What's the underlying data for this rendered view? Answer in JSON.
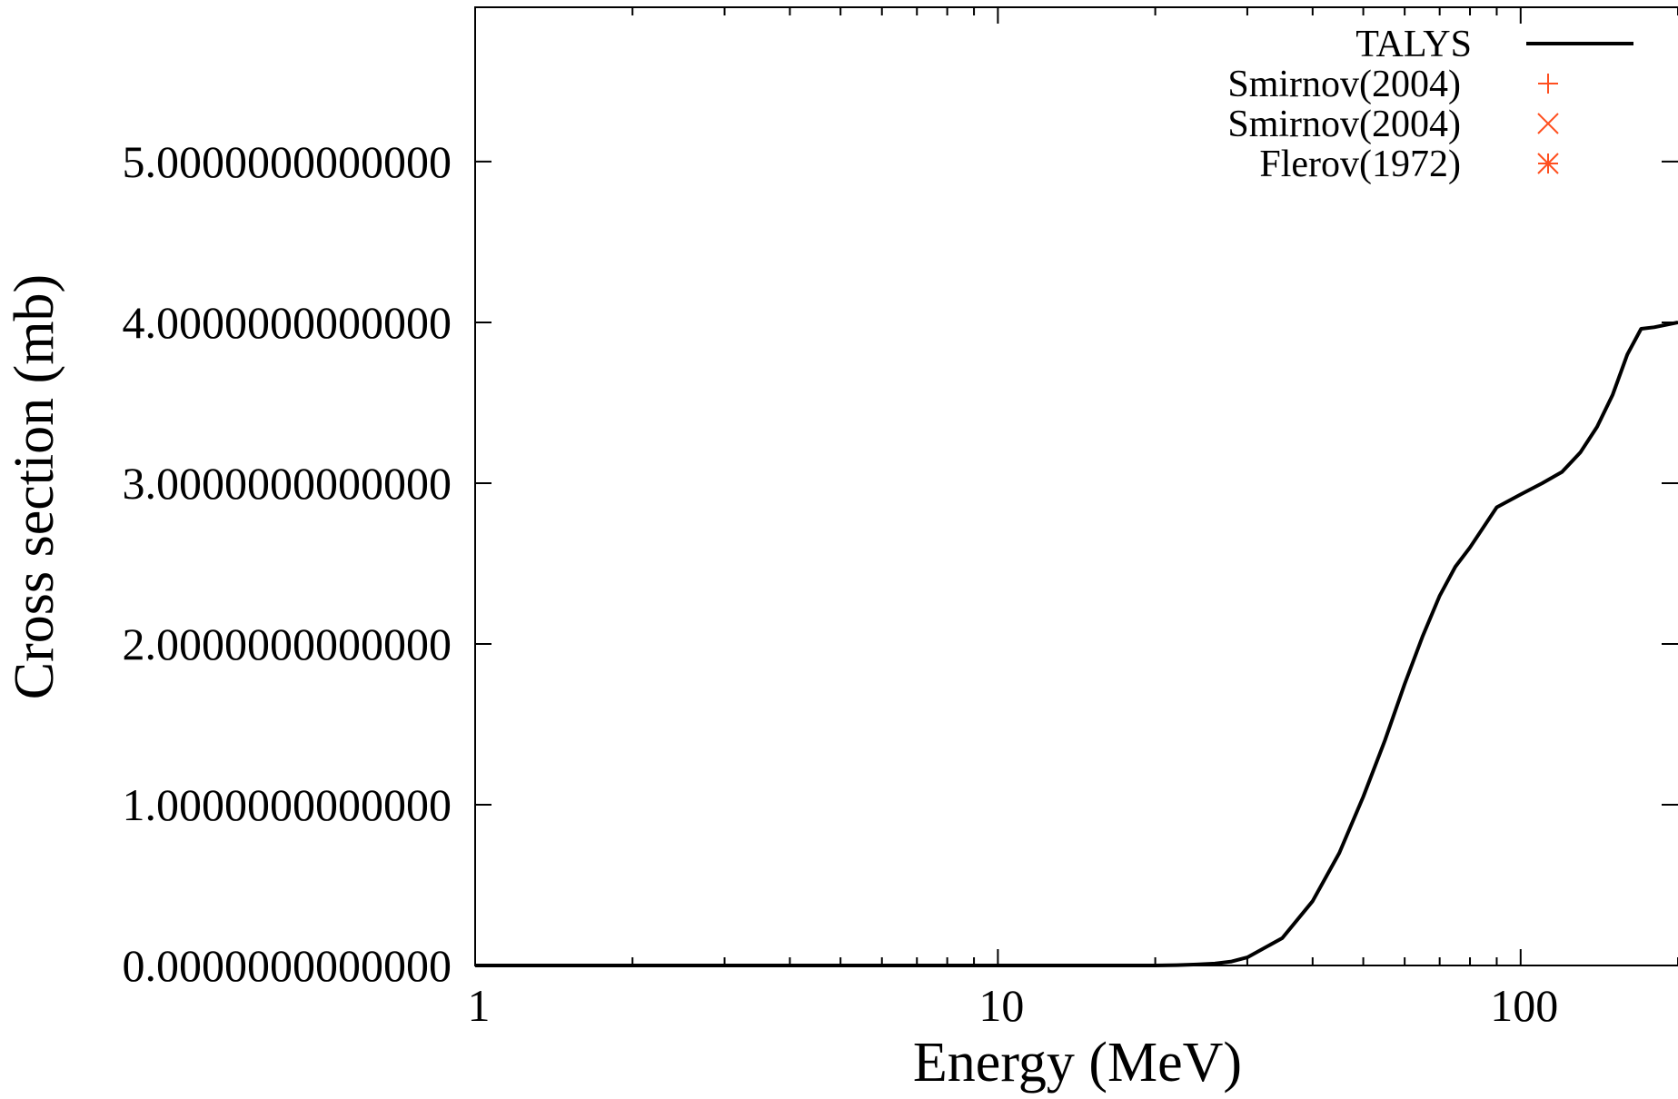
{
  "chart_data": {
    "type": "line",
    "xlabel": "Energy (MeV)",
    "ylabel": "Cross section (mb)",
    "x_scale": "log",
    "xlim": [
      1,
      200
    ],
    "ylim": [
      0,
      5.96
    ],
    "x_ticks": [
      {
        "value": 1,
        "label": "1"
      },
      {
        "value": 10,
        "label": "10"
      },
      {
        "value": 100,
        "label": "100"
      }
    ],
    "y_ticks": [
      {
        "value": 0,
        "label": "0.0000000000000"
      },
      {
        "value": 1,
        "label": "1.0000000000000"
      },
      {
        "value": 2,
        "label": "2.0000000000000"
      },
      {
        "value": 3,
        "label": "3.0000000000000"
      },
      {
        "value": 4,
        "label": "4.0000000000000"
      },
      {
        "value": 5,
        "label": "5.0000000000000"
      }
    ],
    "grid": false,
    "legend_position": "top-right",
    "series": [
      {
        "name": "TALYS",
        "style": "line",
        "color": "#000000",
        "x": [
          1,
          5,
          10,
          15,
          20,
          22,
          24,
          26,
          28,
          30,
          35,
          40,
          45,
          50,
          55,
          60,
          65,
          70,
          75,
          80,
          90,
          100,
          110,
          120,
          130,
          140,
          150,
          160,
          170,
          180,
          200
        ],
        "y": [
          0,
          0,
          0,
          0,
          0,
          0.002,
          0.006,
          0.012,
          0.025,
          0.05,
          0.17,
          0.4,
          0.7,
          1.05,
          1.4,
          1.75,
          2.05,
          2.3,
          2.48,
          2.6,
          2.85,
          2.93,
          3.0,
          3.07,
          3.19,
          3.35,
          3.55,
          3.8,
          3.96,
          3.97,
          4.0
        ]
      },
      {
        "name": "Smirnov(2004)",
        "style": "marker",
        "marker": "plus",
        "color": "#ff4f1f",
        "x": [],
        "y": []
      },
      {
        "name": "Smirnov(2004)",
        "style": "marker",
        "marker": "cross",
        "color": "#ff4f1f",
        "x": [],
        "y": []
      },
      {
        "name": "Flerov(1972)",
        "style": "marker",
        "marker": "star",
        "color": "#ff4f1f",
        "x": [],
        "y": []
      }
    ]
  }
}
